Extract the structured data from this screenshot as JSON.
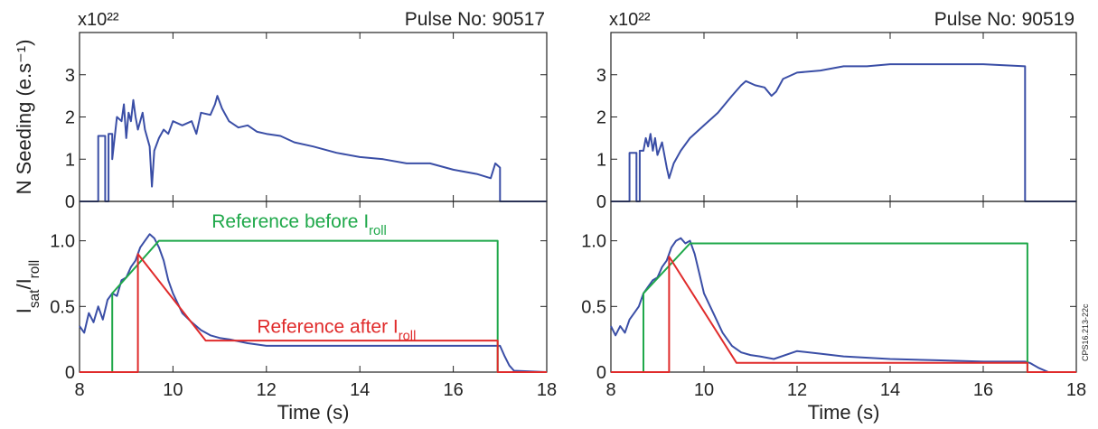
{
  "figure": {
    "credit": "CPS16.213-22c",
    "colors": {
      "measured": "#3a4ea6",
      "reference_before": "#1fa84a",
      "reference_after": "#e02b2b"
    }
  },
  "chart_data": [
    {
      "type": "line",
      "panel": "top-left",
      "title": "Pulse No: 90517",
      "ylabel": "N Seeding (e.s⁻¹)",
      "y_multiplier": "x10²²",
      "xlim": [
        8,
        18
      ],
      "ylim": [
        0,
        4
      ],
      "x_ticks": [
        8,
        10,
        12,
        14,
        16,
        18
      ],
      "y_ticks": [
        0,
        1,
        2,
        3
      ],
      "series": [
        {
          "color": "#3a4ea6",
          "points": [
            [
              8.0,
              0
            ],
            [
              8.4,
              0
            ],
            [
              8.4,
              1.55
            ],
            [
              8.55,
              1.55
            ],
            [
              8.55,
              0
            ],
            [
              8.62,
              0
            ],
            [
              8.62,
              1.6
            ],
            [
              8.7,
              1.6
            ],
            [
              8.7,
              1.0
            ],
            [
              8.8,
              2.0
            ],
            [
              8.9,
              1.9
            ],
            [
              8.95,
              2.3
            ],
            [
              9.0,
              1.5
            ],
            [
              9.05,
              2.1
            ],
            [
              9.1,
              1.9
            ],
            [
              9.15,
              2.4
            ],
            [
              9.2,
              2.0
            ],
            [
              9.25,
              1.7
            ],
            [
              9.3,
              1.9
            ],
            [
              9.35,
              2.1
            ],
            [
              9.4,
              1.7
            ],
            [
              9.5,
              1.3
            ],
            [
              9.55,
              0.35
            ],
            [
              9.6,
              1.2
            ],
            [
              9.7,
              1.5
            ],
            [
              9.8,
              1.7
            ],
            [
              9.9,
              1.6
            ],
            [
              10.0,
              1.9
            ],
            [
              10.2,
              1.8
            ],
            [
              10.4,
              1.9
            ],
            [
              10.5,
              1.6
            ],
            [
              10.6,
              2.1
            ],
            [
              10.8,
              2.05
            ],
            [
              10.9,
              2.3
            ],
            [
              10.95,
              2.5
            ],
            [
              11.05,
              2.2
            ],
            [
              11.2,
              1.9
            ],
            [
              11.4,
              1.75
            ],
            [
              11.6,
              1.8
            ],
            [
              11.8,
              1.65
            ],
            [
              12.0,
              1.6
            ],
            [
              12.3,
              1.55
            ],
            [
              12.6,
              1.4
            ],
            [
              13.0,
              1.3
            ],
            [
              13.5,
              1.15
            ],
            [
              14.0,
              1.05
            ],
            [
              14.5,
              1.0
            ],
            [
              15.0,
              0.9
            ],
            [
              15.5,
              0.9
            ],
            [
              16.0,
              0.75
            ],
            [
              16.5,
              0.65
            ],
            [
              16.8,
              0.55
            ],
            [
              16.9,
              0.9
            ],
            [
              17.0,
              0.8
            ],
            [
              17.0,
              0
            ],
            [
              18.0,
              0
            ]
          ]
        }
      ]
    },
    {
      "type": "line",
      "panel": "top-right",
      "title": "Pulse No: 90519",
      "ylabel": "",
      "y_multiplier": "x10²²",
      "xlim": [
        8,
        18
      ],
      "ylim": [
        0,
        4
      ],
      "x_ticks": [
        8,
        10,
        12,
        14,
        16,
        18
      ],
      "y_ticks": [
        0,
        1,
        2,
        3
      ],
      "series": [
        {
          "color": "#3a4ea6",
          "points": [
            [
              8.0,
              0
            ],
            [
              8.4,
              0
            ],
            [
              8.4,
              1.15
            ],
            [
              8.55,
              1.15
            ],
            [
              8.55,
              0
            ],
            [
              8.62,
              0
            ],
            [
              8.62,
              1.2
            ],
            [
              8.7,
              1.2
            ],
            [
              8.75,
              1.5
            ],
            [
              8.8,
              1.3
            ],
            [
              8.85,
              1.6
            ],
            [
              8.9,
              1.2
            ],
            [
              8.95,
              1.5
            ],
            [
              9.0,
              1.1
            ],
            [
              9.1,
              1.4
            ],
            [
              9.2,
              0.8
            ],
            [
              9.25,
              0.55
            ],
            [
              9.35,
              0.9
            ],
            [
              9.5,
              1.2
            ],
            [
              9.7,
              1.5
            ],
            [
              10.0,
              1.8
            ],
            [
              10.3,
              2.1
            ],
            [
              10.6,
              2.5
            ],
            [
              10.8,
              2.75
            ],
            [
              10.9,
              2.85
            ],
            [
              11.1,
              2.75
            ],
            [
              11.3,
              2.7
            ],
            [
              11.45,
              2.5
            ],
            [
              11.55,
              2.6
            ],
            [
              11.7,
              2.9
            ],
            [
              12.0,
              3.05
            ],
            [
              12.5,
              3.1
            ],
            [
              13.0,
              3.2
            ],
            [
              13.5,
              3.2
            ],
            [
              14.0,
              3.25
            ],
            [
              15.0,
              3.25
            ],
            [
              16.0,
              3.25
            ],
            [
              16.9,
              3.2
            ],
            [
              16.9,
              0
            ],
            [
              18.0,
              0
            ]
          ]
        }
      ]
    },
    {
      "type": "line",
      "panel": "bottom-left",
      "title": "",
      "ylabel": "Iₛₐₜ/Iᵣₒₗₗ",
      "ylabel_parts": {
        "main1": "I",
        "sub1": "sat",
        "main2": "/I",
        "sub2": "roll"
      },
      "xlabel": "Time (s)",
      "xlim": [
        8,
        18
      ],
      "ylim": [
        0,
        1.3
      ],
      "x_ticks": [
        8,
        10,
        12,
        14,
        16,
        18
      ],
      "y_ticks": [
        0,
        0.5,
        1.0
      ],
      "y_tick_labels": [
        "0",
        "0.5",
        "1.0"
      ],
      "annotations": [
        {
          "main": "Reference before I",
          "sub": "roll",
          "color": "#1fa84a",
          "x": 12.7,
          "y": 1.1
        },
        {
          "main": "Reference after I",
          "sub": "roll",
          "color": "#e02b2b",
          "x": 13.5,
          "y": 0.3
        }
      ],
      "series": [
        {
          "role": "measured",
          "color": "#3a4ea6",
          "points": [
            [
              8.0,
              0.35
            ],
            [
              8.1,
              0.3
            ],
            [
              8.2,
              0.45
            ],
            [
              8.3,
              0.38
            ],
            [
              8.4,
              0.5
            ],
            [
              8.5,
              0.4
            ],
            [
              8.6,
              0.55
            ],
            [
              8.7,
              0.6
            ],
            [
              8.8,
              0.58
            ],
            [
              8.9,
              0.7
            ],
            [
              9.0,
              0.72
            ],
            [
              9.1,
              0.8
            ],
            [
              9.2,
              0.85
            ],
            [
              9.3,
              0.95
            ],
            [
              9.4,
              1.0
            ],
            [
              9.5,
              1.05
            ],
            [
              9.6,
              1.02
            ],
            [
              9.7,
              0.95
            ],
            [
              9.8,
              0.85
            ],
            [
              9.9,
              0.7
            ],
            [
              10.0,
              0.6
            ],
            [
              10.2,
              0.45
            ],
            [
              10.4,
              0.38
            ],
            [
              10.6,
              0.32
            ],
            [
              10.8,
              0.28
            ],
            [
              11.0,
              0.26
            ],
            [
              11.2,
              0.25
            ],
            [
              11.6,
              0.22
            ],
            [
              12.0,
              0.2
            ],
            [
              13.0,
              0.2
            ],
            [
              14.0,
              0.2
            ],
            [
              15.0,
              0.2
            ],
            [
              16.0,
              0.2
            ],
            [
              16.9,
              0.2
            ],
            [
              17.0,
              0.2
            ],
            [
              17.1,
              0.12
            ],
            [
              17.2,
              0.05
            ],
            [
              17.3,
              0.01
            ],
            [
              18.0,
              0.0
            ]
          ]
        },
        {
          "role": "reference_before",
          "color": "#1fa84a",
          "points": [
            [
              8.0,
              0
            ],
            [
              8.7,
              0
            ],
            [
              8.7,
              0.6
            ],
            [
              9.7,
              1.0
            ],
            [
              16.95,
              1.0
            ],
            [
              16.95,
              0
            ],
            [
              18.0,
              0
            ]
          ]
        },
        {
          "role": "reference_after",
          "color": "#e02b2b",
          "points": [
            [
              8.0,
              0
            ],
            [
              9.25,
              0
            ],
            [
              9.25,
              0.9
            ],
            [
              10.7,
              0.24
            ],
            [
              16.95,
              0.24
            ],
            [
              16.95,
              0
            ],
            [
              18.0,
              0
            ]
          ]
        }
      ]
    },
    {
      "type": "line",
      "panel": "bottom-right",
      "title": "",
      "ylabel": "",
      "xlabel": "Time (s)",
      "xlim": [
        8,
        18
      ],
      "ylim": [
        0,
        1.3
      ],
      "x_ticks": [
        8,
        10,
        12,
        14,
        16,
        18
      ],
      "y_ticks": [
        0,
        0.5,
        1.0
      ],
      "y_tick_labels": [
        "0",
        "0.5",
        "1.0"
      ],
      "annotations": [],
      "series": [
        {
          "role": "measured",
          "color": "#3a4ea6",
          "points": [
            [
              8.0,
              0.35
            ],
            [
              8.1,
              0.28
            ],
            [
              8.2,
              0.35
            ],
            [
              8.3,
              0.3
            ],
            [
              8.4,
              0.4
            ],
            [
              8.5,
              0.45
            ],
            [
              8.6,
              0.5
            ],
            [
              8.7,
              0.6
            ],
            [
              8.8,
              0.65
            ],
            [
              8.9,
              0.7
            ],
            [
              9.0,
              0.72
            ],
            [
              9.1,
              0.8
            ],
            [
              9.2,
              0.85
            ],
            [
              9.3,
              0.95
            ],
            [
              9.4,
              1.0
            ],
            [
              9.5,
              1.02
            ],
            [
              9.6,
              0.98
            ],
            [
              9.7,
              1.0
            ],
            [
              9.8,
              0.9
            ],
            [
              9.9,
              0.75
            ],
            [
              10.0,
              0.6
            ],
            [
              10.2,
              0.45
            ],
            [
              10.4,
              0.3
            ],
            [
              10.6,
              0.2
            ],
            [
              10.8,
              0.15
            ],
            [
              11.0,
              0.13
            ],
            [
              11.2,
              0.12
            ],
            [
              11.5,
              0.1
            ],
            [
              12.0,
              0.16
            ],
            [
              12.5,
              0.14
            ],
            [
              13.0,
              0.12
            ],
            [
              14.0,
              0.1
            ],
            [
              15.0,
              0.09
            ],
            [
              16.0,
              0.08
            ],
            [
              16.9,
              0.08
            ],
            [
              17.0,
              0.07
            ],
            [
              17.2,
              0.03
            ],
            [
              17.4,
              0.0
            ],
            [
              18.0,
              0.0
            ]
          ]
        },
        {
          "role": "reference_before",
          "color": "#1fa84a",
          "points": [
            [
              8.0,
              0
            ],
            [
              8.7,
              0
            ],
            [
              8.7,
              0.6
            ],
            [
              9.7,
              0.98
            ],
            [
              16.95,
              0.98
            ],
            [
              16.95,
              0
            ],
            [
              18.0,
              0
            ]
          ]
        },
        {
          "role": "reference_after",
          "color": "#e02b2b",
          "points": [
            [
              8.0,
              0
            ],
            [
              9.25,
              0
            ],
            [
              9.25,
              0.88
            ],
            [
              10.7,
              0.07
            ],
            [
              16.95,
              0.07
            ],
            [
              16.95,
              0
            ],
            [
              18.0,
              0
            ]
          ]
        }
      ]
    }
  ]
}
